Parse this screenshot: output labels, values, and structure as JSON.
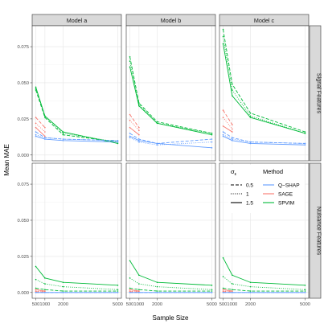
{
  "chart_data": {
    "type": "line",
    "xlabel": "Sample Size",
    "ylabel": "Mean MAE",
    "x": [
      500,
      1000,
      2000,
      5000
    ],
    "x_ticks": [
      500,
      1000,
      2000,
      5000
    ],
    "x_tick_labels": [
      "500",
      "1000",
      "2000",
      "5000"
    ],
    "xlim": [
      300,
      5200
    ],
    "ylim": [
      -0.004,
      0.0895
    ],
    "y_ticks": [
      0,
      0.025,
      0.05,
      0.075
    ],
    "y_tick_labels": [
      "0.000",
      "0.025",
      "0.050",
      "0.075"
    ],
    "grid": true,
    "columns": [
      "Model a",
      "Model b",
      "Model c"
    ],
    "rows": [
      "Signal Features",
      "Nuisance Features"
    ],
    "colors": {
      "Q-SHAP": "#619CFF",
      "SAGE": "#F8766D",
      "SPVIM": "#00BA38"
    },
    "sigma_linetypes": {
      "0.5": "dashed",
      "1": "dotted",
      "1.5": "solid"
    },
    "legend": {
      "placement": "inside-top-right",
      "sigma_title": "σε",
      "sigma_entries": [
        "0.5",
        "1",
        "1.5"
      ],
      "method_title": "Method",
      "method_entries": [
        "Q−SHAP",
        "SAGE",
        "SPVIM"
      ]
    },
    "panels": [
      {
        "row": 0,
        "col": 0,
        "series": [
          {
            "method": "SPVIM",
            "sigma": "0.5",
            "values": [
              0.045,
              0.026,
              0.014,
              0.009
            ]
          },
          {
            "method": "SPVIM",
            "sigma": "1",
            "values": [
              0.046,
              0.027,
              0.015,
              0.009
            ]
          },
          {
            "method": "SPVIM",
            "sigma": "1.5",
            "values": [
              0.047,
              0.027,
              0.016,
              0.008
            ]
          },
          {
            "method": "SAGE",
            "sigma": "0.5",
            "values": [
              0.026,
              0.019
            ]
          },
          {
            "method": "SAGE",
            "sigma": "1",
            "values": [
              0.022,
              0.016
            ]
          },
          {
            "method": "SAGE",
            "sigma": "1.5",
            "values": [
              0.019,
              0.013
            ]
          },
          {
            "method": "Q-SHAP",
            "sigma": "0.5",
            "values": [
              0.016,
              0.012,
              0.011,
              0.01
            ]
          },
          {
            "method": "Q-SHAP",
            "sigma": "1",
            "values": [
              0.014,
              0.012,
              0.011,
              0.01
            ]
          },
          {
            "method": "Q-SHAP",
            "sigma": "1.5",
            "values": [
              0.013,
              0.011,
              0.01,
              0.009
            ]
          }
        ]
      },
      {
        "row": 0,
        "col": 1,
        "series": [
          {
            "method": "SPVIM",
            "sigma": "0.5",
            "values": [
              0.068,
              0.036,
              0.023,
              0.015
            ]
          },
          {
            "method": "SPVIM",
            "sigma": "1",
            "values": [
              0.065,
              0.035,
              0.022,
              0.015
            ]
          },
          {
            "method": "SPVIM",
            "sigma": "1.5",
            "values": [
              0.061,
              0.034,
              0.022,
              0.014
            ]
          },
          {
            "method": "SAGE",
            "sigma": "0.5",
            "values": [
              0.028,
              0.019
            ]
          },
          {
            "method": "SAGE",
            "sigma": "1",
            "values": [
              0.024,
              0.017
            ]
          },
          {
            "method": "SAGE",
            "sigma": "1.5",
            "values": [
              0.019,
              0.014
            ]
          },
          {
            "method": "Q-SHAP",
            "sigma": "0.5",
            "values": [
              0.015,
              0.011,
              0.008,
              0.011
            ]
          },
          {
            "method": "Q-SHAP",
            "sigma": "1",
            "values": [
              0.012,
              0.009,
              0.007,
              0.009
            ]
          },
          {
            "method": "Q-SHAP",
            "sigma": "1.5",
            "values": [
              0.013,
              0.01,
              0.008,
              0.005
            ]
          }
        ]
      },
      {
        "row": 0,
        "col": 2,
        "series": [
          {
            "method": "SPVIM",
            "sigma": "0.5",
            "values": [
              0.087,
              0.049,
              0.029,
              0.016
            ]
          },
          {
            "method": "SPVIM",
            "sigma": "1",
            "values": [
              0.082,
              0.045,
              0.027,
              0.015
            ]
          },
          {
            "method": "SPVIM",
            "sigma": "1.5",
            "values": [
              0.077,
              0.041,
              0.026,
              0.015
            ]
          },
          {
            "method": "SAGE",
            "sigma": "0.5",
            "values": [
              0.031,
              0.021
            ]
          },
          {
            "method": "SAGE",
            "sigma": "1",
            "values": [
              0.026,
              0.018
            ]
          },
          {
            "method": "SAGE",
            "sigma": "1.5",
            "values": [
              0.02,
              0.016
            ]
          },
          {
            "method": "Q-SHAP",
            "sigma": "0.5",
            "values": [
              0.016,
              0.012,
              0.009,
              0.008
            ]
          },
          {
            "method": "Q-SHAP",
            "sigma": "1",
            "values": [
              0.014,
              0.011,
              0.009,
              0.008
            ]
          },
          {
            "method": "Q-SHAP",
            "sigma": "1.5",
            "values": [
              0.013,
              0.01,
              0.008,
              0.007
            ]
          }
        ]
      },
      {
        "row": 1,
        "col": 0,
        "series": [
          {
            "method": "SPVIM",
            "sigma": "1.5",
            "values": [
              0.018,
              0.01,
              0.007,
              0.005
            ]
          },
          {
            "method": "SPVIM",
            "sigma": "1",
            "values": [
              0.009,
              0.006,
              0.004,
              0.002
            ]
          },
          {
            "method": "SPVIM",
            "sigma": "0.5",
            "values": [
              0.003,
              0.002,
              0.001,
              0.001
            ]
          },
          {
            "method": "SAGE",
            "sigma": "1.5",
            "values": [
              0.002,
              0.001
            ]
          },
          {
            "method": "SAGE",
            "sigma": "1",
            "values": [
              0.001,
              0.001
            ]
          },
          {
            "method": "SAGE",
            "sigma": "0.5",
            "values": [
              0.0005,
              0.0005
            ]
          },
          {
            "method": "Q-SHAP",
            "sigma": "0.5",
            "values": [
              0.0,
              0.0,
              0.0,
              0.0
            ]
          },
          {
            "method": "Q-SHAP",
            "sigma": "1",
            "values": [
              0.0,
              0.0,
              0.0,
              0.0
            ]
          },
          {
            "method": "Q-SHAP",
            "sigma": "1.5",
            "values": [
              0.0,
              0.0,
              0.0,
              0.0
            ]
          }
        ]
      },
      {
        "row": 1,
        "col": 1,
        "series": [
          {
            "method": "SPVIM",
            "sigma": "1.5",
            "values": [
              0.022,
              0.012,
              0.007,
              0.005
            ]
          },
          {
            "method": "SPVIM",
            "sigma": "1",
            "values": [
              0.01,
              0.006,
              0.004,
              0.002
            ]
          },
          {
            "method": "SPVIM",
            "sigma": "0.5",
            "values": [
              0.003,
              0.002,
              0.001,
              0.001
            ]
          },
          {
            "method": "SAGE",
            "sigma": "1.5",
            "values": [
              0.002,
              0.001
            ]
          },
          {
            "method": "SAGE",
            "sigma": "1",
            "values": [
              0.001,
              0.001
            ]
          },
          {
            "method": "SAGE",
            "sigma": "0.5",
            "values": [
              0.0005,
              0.0005
            ]
          },
          {
            "method": "Q-SHAP",
            "sigma": "0.5",
            "values": [
              0.0,
              0.0,
              0.0,
              0.0
            ]
          },
          {
            "method": "Q-SHAP",
            "sigma": "1",
            "values": [
              0.0,
              0.0,
              0.0,
              0.0
            ]
          },
          {
            "method": "Q-SHAP",
            "sigma": "1.5",
            "values": [
              0.0,
              0.0,
              0.0,
              0.0
            ]
          }
        ]
      },
      {
        "row": 1,
        "col": 2,
        "series": [
          {
            "method": "SPVIM",
            "sigma": "1.5",
            "values": [
              0.024,
              0.012,
              0.007,
              0.005
            ]
          },
          {
            "method": "SPVIM",
            "sigma": "1",
            "values": [
              0.011,
              0.006,
              0.004,
              0.002
            ]
          },
          {
            "method": "SPVIM",
            "sigma": "0.5",
            "values": [
              0.003,
              0.002,
              0.001,
              0.001
            ]
          },
          {
            "method": "SAGE",
            "sigma": "1.5",
            "values": [
              0.002,
              0.001
            ]
          },
          {
            "method": "SAGE",
            "sigma": "1",
            "values": [
              0.001,
              0.001
            ]
          },
          {
            "method": "SAGE",
            "sigma": "0.5",
            "values": [
              0.0005,
              0.0005
            ]
          },
          {
            "method": "Q-SHAP",
            "sigma": "0.5",
            "values": [
              0.0,
              0.0,
              0.0,
              0.0
            ]
          },
          {
            "method": "Q-SHAP",
            "sigma": "1",
            "values": [
              0.0,
              0.0,
              0.0,
              0.0
            ]
          },
          {
            "method": "Q-SHAP",
            "sigma": "1.5",
            "values": [
              0.0,
              0.0,
              0.0,
              0.0
            ]
          }
        ]
      }
    ]
  }
}
